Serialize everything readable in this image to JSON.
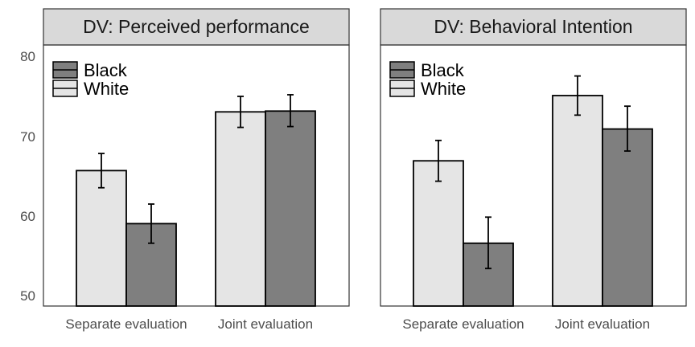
{
  "chart_data": {
    "type": "bar",
    "ylim": [
      49,
      81
    ],
    "yticks": [
      "50",
      "60",
      "70",
      "80"
    ],
    "categories": [
      "Separate evaluation",
      "Joint evaluation"
    ],
    "legend": {
      "placement": "top-left",
      "entries": [
        {
          "label": "Black",
          "color": "#7f7f7f"
        },
        {
          "label": "White",
          "color": "#e5e5e5"
        }
      ]
    },
    "colors": {
      "White": "#e5e5e5",
      "Black": "#7f7f7f",
      "strip": "#d9d9d9"
    },
    "panels": [
      {
        "title": "DV: Perceived performance",
        "series": [
          {
            "name": "White",
            "values": [
              65.6,
              72.8
            ],
            "error_low": [
              63.5,
              70.9
            ],
            "error_high": [
              67.7,
              74.7
            ]
          },
          {
            "name": "Black",
            "values": [
              59.1,
              72.9
            ],
            "error_low": [
              56.7,
              71.0
            ],
            "error_high": [
              61.5,
              74.9
            ]
          }
        ]
      },
      {
        "title": "DV: Behavioral Intention",
        "series": [
          {
            "name": "White",
            "values": [
              66.8,
              74.8
            ],
            "error_low": [
              64.3,
              72.4
            ],
            "error_high": [
              69.3,
              77.2
            ]
          },
          {
            "name": "Black",
            "values": [
              56.7,
              70.7
            ],
            "error_low": [
              53.6,
              68.0
            ],
            "error_high": [
              59.9,
              73.5
            ]
          }
        ]
      }
    ]
  }
}
